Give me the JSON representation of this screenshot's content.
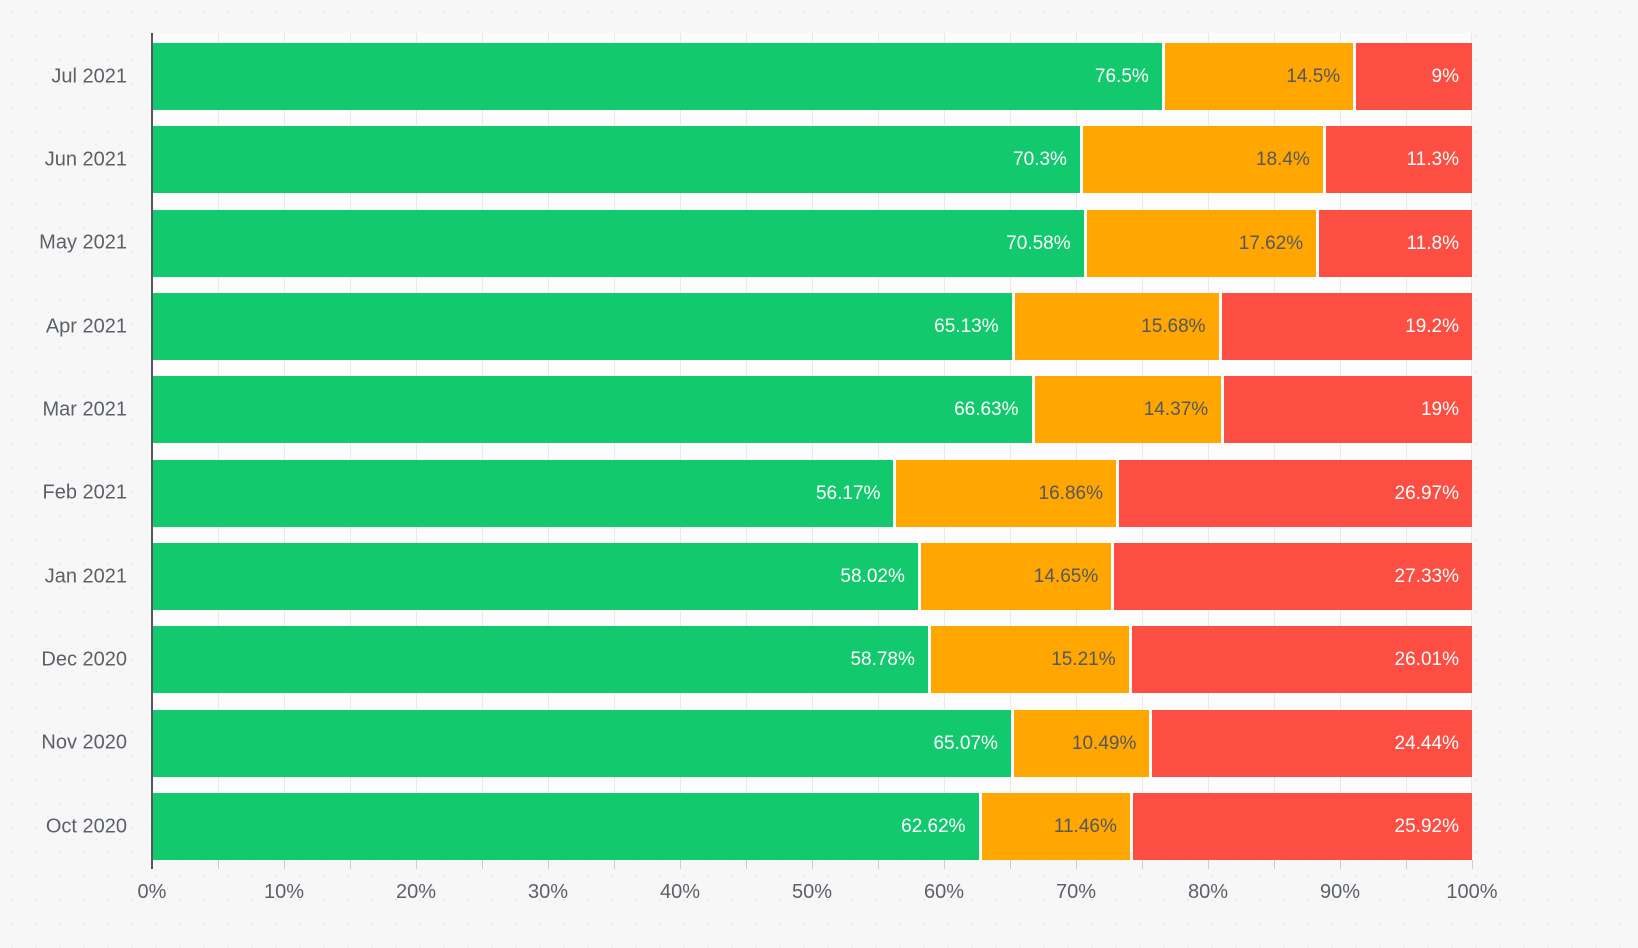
{
  "chart_data": {
    "type": "bar",
    "orientation": "horizontal",
    "stacked": true,
    "title": "",
    "xlabel": "",
    "ylabel": "",
    "grid": true,
    "legend_position": "none",
    "categories": [
      "Jul 2021",
      "Jun 2021",
      "May 2021",
      "Apr 2021",
      "Mar 2021",
      "Feb 2021",
      "Jan 2021",
      "Dec 2020",
      "Nov 2020",
      "Oct 2020"
    ],
    "series": [
      {
        "name": "green",
        "color": "#12c96d",
        "label_color": "#ffffff",
        "values": [
          76.5,
          70.3,
          70.58,
          65.13,
          66.63,
          56.17,
          58.02,
          58.78,
          65.07,
          62.62
        ],
        "labels": [
          "76.5%",
          "70.3%",
          "70.58%",
          "65.13%",
          "66.63%",
          "56.17%",
          "58.02%",
          "58.78%",
          "65.07%",
          "62.62%"
        ]
      },
      {
        "name": "orange",
        "color": "#ffa601",
        "label_color": "#54585f",
        "values": [
          14.5,
          18.4,
          17.62,
          15.68,
          14.37,
          16.86,
          14.65,
          15.21,
          10.49,
          11.46
        ],
        "labels": [
          "14.5%",
          "18.4%",
          "17.62%",
          "15.68%",
          "14.37%",
          "16.86%",
          "14.65%",
          "15.21%",
          "10.49%",
          "11.46%"
        ]
      },
      {
        "name": "red",
        "color": "#fc4e42",
        "label_color": "#ffffff",
        "values": [
          9,
          11.3,
          11.8,
          19.2,
          19,
          26.97,
          27.33,
          26.01,
          24.44,
          25.92
        ],
        "labels": [
          "9%",
          "11.3%",
          "11.8%",
          "19.2%",
          "19%",
          "26.97%",
          "27.33%",
          "26.01%",
          "24.44%",
          "25.92%"
        ]
      }
    ],
    "x_axis": {
      "range": [
        0,
        100
      ],
      "tick_labels": [
        "0%",
        "10%",
        "20%",
        "30%",
        "40%",
        "50%",
        "60%",
        "70%",
        "80%",
        "90%",
        "100%"
      ],
      "major_step": 10,
      "minor_grid_step": 5
    },
    "colors": {
      "axis_line": "#54585c",
      "gridline": "#e9e9ec",
      "tick": "#cdced2",
      "axis_text": "#5c6167",
      "plot_background": "#fcfcfd",
      "page_background": "#f7f7f8"
    }
  }
}
